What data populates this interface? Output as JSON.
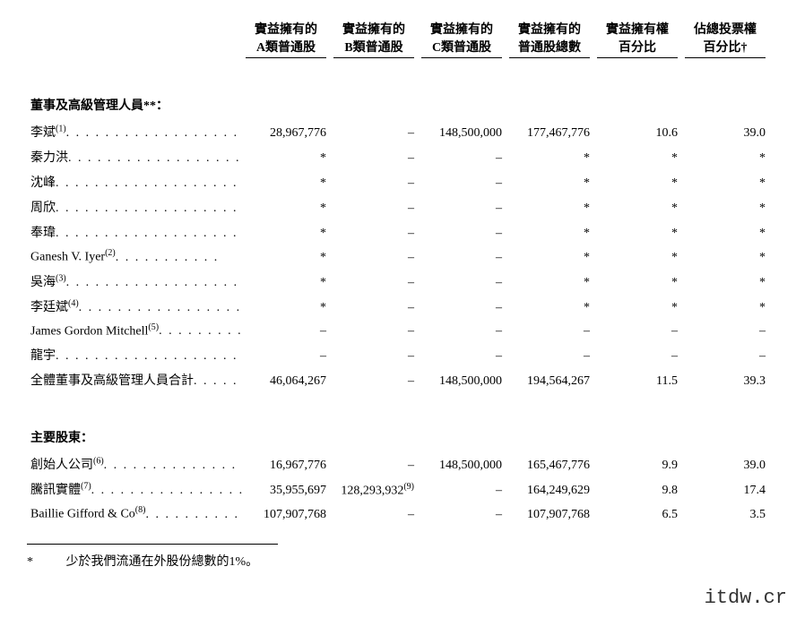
{
  "columns": [
    {
      "line1": "實益擁有的",
      "line2": "A類普通股"
    },
    {
      "line1": "實益擁有的",
      "line2": "B類普通股"
    },
    {
      "line1": "實益擁有的",
      "line2": "C類普通股"
    },
    {
      "line1": "實益擁有的",
      "line2": "普通股總數"
    },
    {
      "line1": "實益擁有權",
      "line2": "百分比"
    },
    {
      "line1": "佔總投票權",
      "line2": "百分比†"
    }
  ],
  "section1_title": "董事及高級管理人員**：",
  "section1_rows": [
    {
      "label": "李斌",
      "sup": "(1)",
      "v": [
        "28,967,776",
        "–",
        "148,500,000",
        "177,467,776",
        "10.6",
        "39.0"
      ]
    },
    {
      "label": "秦力洪",
      "sup": "",
      "v": [
        "*",
        "–",
        "–",
        "*",
        "*",
        "*"
      ]
    },
    {
      "label": "沈峰",
      "sup": "",
      "v": [
        "*",
        "–",
        "–",
        "*",
        "*",
        "*"
      ]
    },
    {
      "label": "周欣",
      "sup": "",
      "v": [
        "*",
        "–",
        "–",
        "*",
        "*",
        "*"
      ]
    },
    {
      "label": "奉瑋",
      "sup": "",
      "v": [
        "*",
        "–",
        "–",
        "*",
        "*",
        "*"
      ]
    },
    {
      "label": "Ganesh V. Iyer",
      "sup": "(2)",
      "v": [
        "*",
        "–",
        "–",
        "*",
        "*",
        "*"
      ]
    },
    {
      "label": "吳海",
      "sup": "(3)",
      "v": [
        "*",
        "–",
        "–",
        "*",
        "*",
        "*"
      ]
    },
    {
      "label": "李廷斌",
      "sup": "(4)",
      "v": [
        "*",
        "–",
        "–",
        "*",
        "*",
        "*"
      ]
    },
    {
      "label": "James Gordon Mitchell",
      "sup": "(5)",
      "v": [
        "–",
        "–",
        "–",
        "–",
        "–",
        "–"
      ]
    },
    {
      "label": "龍宇",
      "sup": "",
      "v": [
        "–",
        "–",
        "–",
        "–",
        "–",
        "–"
      ]
    },
    {
      "label": "全體董事及高級管理人員合計",
      "sup": "",
      "v": [
        "46,064,267",
        "–",
        "148,500,000",
        "194,564,267",
        "11.5",
        "39.3"
      ]
    }
  ],
  "section2_title": "主要股東：",
  "section2_rows": [
    {
      "label": "創始人公司",
      "sup": "(6)",
      "v": [
        "16,967,776",
        "–",
        "148,500,000",
        "165,467,776",
        "9.9",
        "39.0"
      ]
    },
    {
      "label": "騰訊實體",
      "sup": "(7)",
      "v": [
        "35,955,697",
        "128,293,932",
        "–",
        "164,249,629",
        "9.8",
        "17.4"
      ],
      "cell_sup": [
        null,
        "(9)",
        null,
        null,
        null,
        null
      ]
    },
    {
      "label": "Baillie Gifford & Co",
      "sup": "(8)",
      "v": [
        "107,907,768",
        "–",
        "–",
        "107,907,768",
        "6.5",
        "3.5"
      ]
    }
  ],
  "footnote": {
    "marker": "*",
    "text": "少於我們流通在外股份總數的1%。"
  },
  "watermark": "itdw.cr",
  "dots_long": ". . . . . . . . . . . . . . . . . . . . . .",
  "dots_med": ". . . . . . . . . . . . . . . . . . .",
  "dots_short": ". . . . . . . . . . ."
}
